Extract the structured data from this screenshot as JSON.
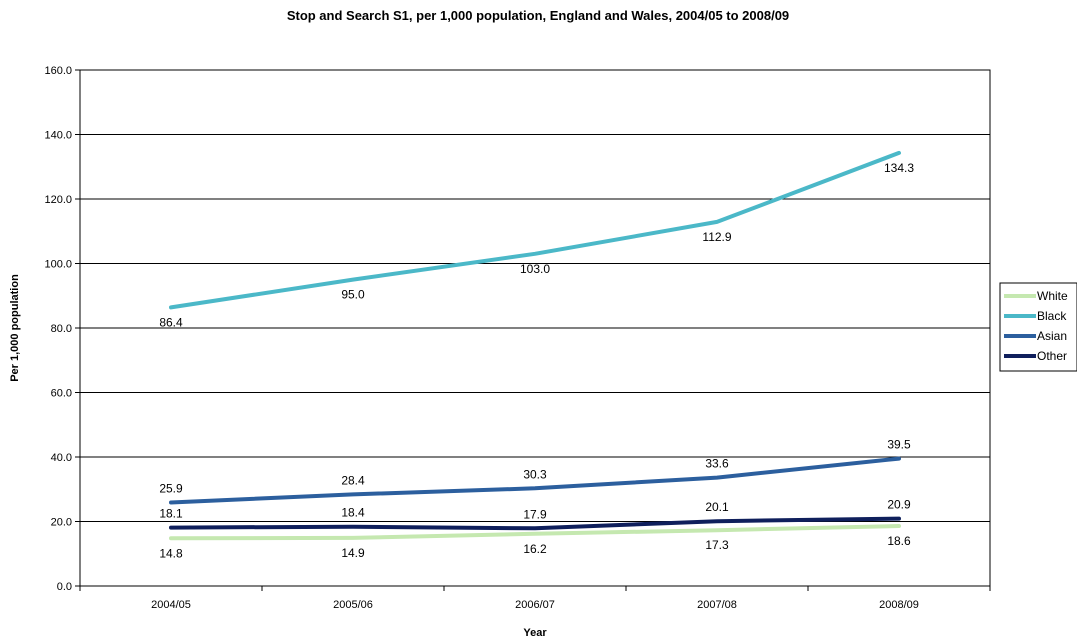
{
  "chart_data": {
    "type": "line",
    "title": "Stop and Search S1, per 1,000 population, England and Wales, 2004/05 to 2008/09",
    "xlabel": "Year",
    "ylabel": "Per 1,000 population",
    "categories": [
      "2004/05",
      "2005/06",
      "2006/07",
      "2007/08",
      "2008/09"
    ],
    "ylim": [
      0,
      160
    ],
    "yticks": [
      "0.0",
      "20.0",
      "40.0",
      "60.0",
      "80.0",
      "100.0",
      "120.0",
      "140.0",
      "160.0"
    ],
    "grid": true,
    "legend_position": "right",
    "series": [
      {
        "name": "White",
        "color": "#c5e8b0",
        "values": [
          14.8,
          14.9,
          16.2,
          17.3,
          18.6
        ],
        "labels": [
          "14.8",
          "14.9",
          "16.2",
          "17.3",
          "18.6"
        ]
      },
      {
        "name": "Black",
        "color": "#4bb8c8",
        "values": [
          86.4,
          95.0,
          103.0,
          112.9,
          134.3
        ],
        "labels": [
          "86.4",
          "95.0",
          "103.0",
          "112.9",
          "134.3"
        ]
      },
      {
        "name": "Asian",
        "color": "#2c5f9e",
        "values": [
          25.9,
          28.4,
          30.3,
          33.6,
          39.5
        ],
        "labels": [
          "25.9",
          "28.4",
          "30.3",
          "33.6",
          "39.5"
        ]
      },
      {
        "name": "Other",
        "color": "#0f1f5c",
        "values": [
          18.1,
          18.4,
          17.9,
          20.1,
          20.9
        ],
        "labels": [
          "18.1",
          "18.4",
          "17.9",
          "20.1",
          "20.9"
        ]
      }
    ]
  }
}
